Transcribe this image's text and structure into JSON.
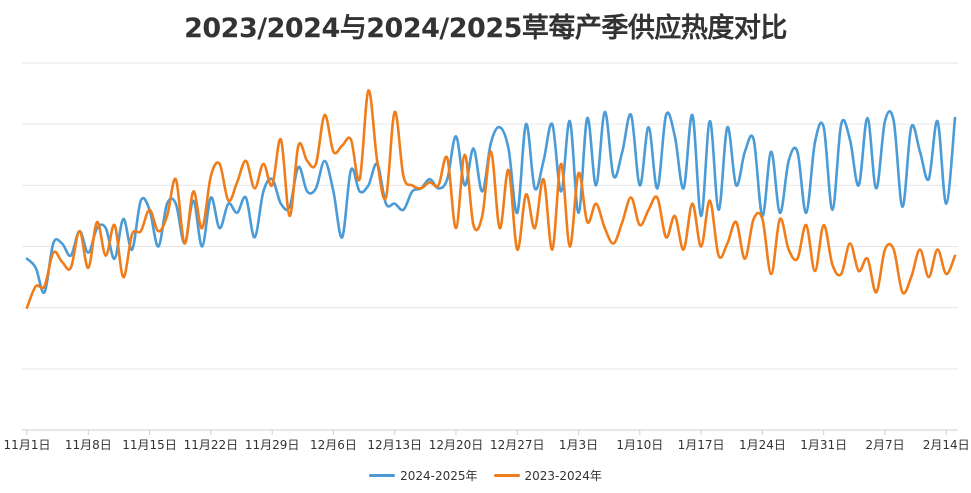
{
  "chart_data": {
    "type": "line",
    "title": "2023/2024与2024/2025草莓产季供应热度对比",
    "xlabel": "",
    "ylabel": "",
    "ylim": [
      0,
      6
    ],
    "grid": true,
    "legend_position": "bottom",
    "x_tick_labels": [
      "11月1日",
      "11月8日",
      "11月15日",
      "11月22日",
      "11月29日",
      "12月6日",
      "12月13日",
      "12月20日",
      "12月27日",
      "1月3日",
      "1月10日",
      "1月17日",
      "1月24日",
      "1月31日",
      "2月7日",
      "2月14日"
    ],
    "x_tick_days": [
      0,
      7,
      14,
      21,
      28,
      35,
      42,
      49,
      56,
      63,
      70,
      77,
      84,
      91,
      98,
      105
    ],
    "series": [
      {
        "name": "2024-2025年",
        "color": "#4A9BD6",
        "points": [
          [
            0,
            2.8
          ],
          [
            1,
            2.65
          ],
          [
            2,
            2.25
          ],
          [
            3,
            3.05
          ],
          [
            4,
            3.05
          ],
          [
            5,
            2.85
          ],
          [
            6,
            3.25
          ],
          [
            7,
            2.9
          ],
          [
            8,
            3.3
          ],
          [
            9,
            3.3
          ],
          [
            10,
            2.8
          ],
          [
            11,
            3.45
          ],
          [
            12,
            2.95
          ],
          [
            13,
            3.75
          ],
          [
            14,
            3.6
          ],
          [
            15,
            3.0
          ],
          [
            16,
            3.7
          ],
          [
            17,
            3.7
          ],
          [
            18,
            3.05
          ],
          [
            19,
            3.75
          ],
          [
            20,
            3.0
          ],
          [
            21,
            3.8
          ],
          [
            22,
            3.3
          ],
          [
            23,
            3.7
          ],
          [
            24,
            3.55
          ],
          [
            25,
            3.8
          ],
          [
            26,
            3.15
          ],
          [
            27,
            3.9
          ],
          [
            28,
            4.1
          ],
          [
            29,
            3.7
          ],
          [
            30,
            3.65
          ],
          [
            31,
            4.3
          ],
          [
            32,
            3.9
          ],
          [
            33,
            3.95
          ],
          [
            34,
            4.4
          ],
          [
            35,
            3.9
          ],
          [
            36,
            3.15
          ],
          [
            37,
            4.25
          ],
          [
            38,
            3.9
          ],
          [
            39,
            4.0
          ],
          [
            40,
            4.35
          ],
          [
            41,
            3.7
          ],
          [
            42,
            3.7
          ],
          [
            43,
            3.6
          ],
          [
            44,
            3.9
          ],
          [
            45,
            3.95
          ],
          [
            46,
            4.1
          ],
          [
            47,
            3.95
          ],
          [
            48,
            4.1
          ],
          [
            49,
            4.8
          ],
          [
            50,
            4.0
          ],
          [
            51,
            4.6
          ],
          [
            52,
            3.9
          ],
          [
            53,
            4.7
          ],
          [
            54,
            4.95
          ],
          [
            55,
            4.6
          ],
          [
            56,
            3.55
          ],
          [
            57,
            5.0
          ],
          [
            58,
            3.95
          ],
          [
            59,
            4.4
          ],
          [
            60,
            5.0
          ],
          [
            61,
            3.9
          ],
          [
            62,
            5.05
          ],
          [
            63,
            3.55
          ],
          [
            64,
            5.1
          ],
          [
            65,
            4.0
          ],
          [
            66,
            5.2
          ],
          [
            67,
            4.15
          ],
          [
            68,
            4.55
          ],
          [
            69,
            5.15
          ],
          [
            70,
            4.0
          ],
          [
            71,
            4.95
          ],
          [
            72,
            3.95
          ],
          [
            73,
            5.15
          ],
          [
            74,
            4.8
          ],
          [
            75,
            3.95
          ],
          [
            76,
            5.15
          ],
          [
            77,
            3.5
          ],
          [
            78,
            5.05
          ],
          [
            79,
            3.6
          ],
          [
            80,
            4.95
          ],
          [
            81,
            4.0
          ],
          [
            82,
            4.55
          ],
          [
            83,
            4.75
          ],
          [
            84,
            3.5
          ],
          [
            85,
            4.55
          ],
          [
            86,
            3.55
          ],
          [
            87,
            4.4
          ],
          [
            88,
            4.55
          ],
          [
            89,
            3.55
          ],
          [
            90,
            4.7
          ],
          [
            91,
            4.95
          ],
          [
            92,
            3.6
          ],
          [
            93,
            5.0
          ],
          [
            94,
            4.75
          ],
          [
            95,
            4.0
          ],
          [
            96,
            5.1
          ],
          [
            97,
            3.95
          ],
          [
            98,
            5.05
          ],
          [
            99,
            5.05
          ],
          [
            100,
            3.65
          ],
          [
            101,
            4.95
          ],
          [
            102,
            4.55
          ],
          [
            103,
            4.1
          ],
          [
            104,
            5.05
          ],
          [
            105,
            3.7
          ],
          [
            106,
            5.1
          ]
        ]
      },
      {
        "name": "2023-2024年",
        "color": "#F07D1A",
        "points": [
          [
            0,
            2.0
          ],
          [
            1,
            2.35
          ],
          [
            2,
            2.35
          ],
          [
            3,
            2.9
          ],
          [
            4,
            2.75
          ],
          [
            5,
            2.65
          ],
          [
            6,
            3.25
          ],
          [
            7,
            2.65
          ],
          [
            8,
            3.4
          ],
          [
            9,
            2.85
          ],
          [
            10,
            3.35
          ],
          [
            11,
            2.5
          ],
          [
            12,
            3.2
          ],
          [
            13,
            3.25
          ],
          [
            14,
            3.6
          ],
          [
            15,
            3.25
          ],
          [
            16,
            3.5
          ],
          [
            17,
            4.1
          ],
          [
            18,
            3.05
          ],
          [
            19,
            3.9
          ],
          [
            20,
            3.3
          ],
          [
            21,
            4.15
          ],
          [
            22,
            4.35
          ],
          [
            23,
            3.75
          ],
          [
            24,
            4.05
          ],
          [
            25,
            4.4
          ],
          [
            26,
            3.95
          ],
          [
            27,
            4.35
          ],
          [
            28,
            4.0
          ],
          [
            29,
            4.75
          ],
          [
            30,
            3.5
          ],
          [
            31,
            4.65
          ],
          [
            32,
            4.4
          ],
          [
            33,
            4.35
          ],
          [
            34,
            5.15
          ],
          [
            35,
            4.55
          ],
          [
            36,
            4.65
          ],
          [
            37,
            4.75
          ],
          [
            38,
            4.1
          ],
          [
            39,
            5.55
          ],
          [
            40,
            4.4
          ],
          [
            41,
            3.8
          ],
          [
            42,
            5.2
          ],
          [
            43,
            4.15
          ],
          [
            44,
            4.0
          ],
          [
            45,
            3.95
          ],
          [
            46,
            4.05
          ],
          [
            47,
            4.0
          ],
          [
            48,
            4.45
          ],
          [
            49,
            3.3
          ],
          [
            50,
            4.5
          ],
          [
            51,
            3.35
          ],
          [
            52,
            3.5
          ],
          [
            53,
            4.55
          ],
          [
            54,
            3.3
          ],
          [
            55,
            4.25
          ],
          [
            56,
            2.95
          ],
          [
            57,
            3.85
          ],
          [
            58,
            3.3
          ],
          [
            59,
            4.1
          ],
          [
            60,
            2.95
          ],
          [
            61,
            4.35
          ],
          [
            62,
            3.0
          ],
          [
            63,
            4.2
          ],
          [
            64,
            3.4
          ],
          [
            65,
            3.7
          ],
          [
            66,
            3.3
          ],
          [
            67,
            3.05
          ],
          [
            68,
            3.4
          ],
          [
            69,
            3.8
          ],
          [
            70,
            3.35
          ],
          [
            71,
            3.6
          ],
          [
            72,
            3.8
          ],
          [
            73,
            3.15
          ],
          [
            74,
            3.5
          ],
          [
            75,
            2.95
          ],
          [
            76,
            3.7
          ],
          [
            77,
            3.0
          ],
          [
            78,
            3.75
          ],
          [
            79,
            2.85
          ],
          [
            80,
            3.05
          ],
          [
            81,
            3.4
          ],
          [
            82,
            2.8
          ],
          [
            83,
            3.45
          ],
          [
            84,
            3.45
          ],
          [
            85,
            2.55
          ],
          [
            86,
            3.45
          ],
          [
            87,
            2.95
          ],
          [
            88,
            2.8
          ],
          [
            89,
            3.35
          ],
          [
            90,
            2.6
          ],
          [
            91,
            3.35
          ],
          [
            92,
            2.7
          ],
          [
            93,
            2.55
          ],
          [
            94,
            3.05
          ],
          [
            95,
            2.6
          ],
          [
            96,
            2.8
          ],
          [
            97,
            2.25
          ],
          [
            98,
            2.95
          ],
          [
            99,
            2.95
          ],
          [
            100,
            2.25
          ],
          [
            101,
            2.5
          ],
          [
            102,
            2.95
          ],
          [
            103,
            2.5
          ],
          [
            104,
            2.95
          ],
          [
            105,
            2.55
          ],
          [
            106,
            2.85
          ]
        ]
      }
    ]
  }
}
